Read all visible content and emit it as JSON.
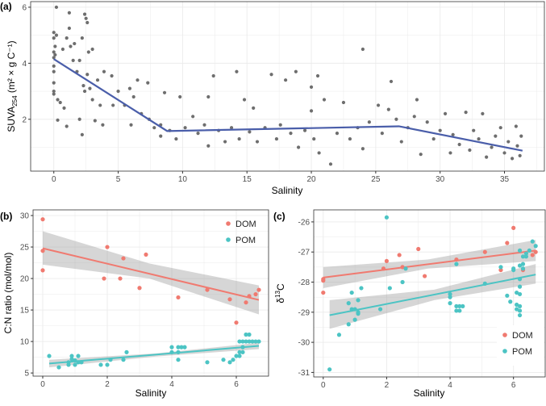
{
  "chart_data": [
    {
      "id": "a",
      "panel_label": "(a)",
      "type": "scatter",
      "xlabel": "Salinity",
      "ylabel": "SUVA",
      "ylabel_sub": "254",
      "ylabel_unit": " (m² × g C⁻¹)",
      "xlim": [
        -1.8,
        38.1
      ],
      "ylim": [
        0.15,
        6.2
      ],
      "xticks": [
        0,
        5,
        10,
        15,
        20,
        25,
        30,
        35
      ],
      "yticks": [
        2,
        4,
        6
      ],
      "grid": true,
      "point_color": "#6e6e6e",
      "line_color": "#4a5eaa",
      "trend": [
        [
          0,
          4.15
        ],
        [
          8.8,
          1.58
        ],
        [
          26.8,
          1.75
        ],
        [
          36.4,
          0.88
        ]
      ],
      "points": [
        [
          0,
          5.1
        ],
        [
          0,
          4.9
        ],
        [
          0,
          4.4
        ],
        [
          0,
          4.2
        ],
        [
          0,
          3.9
        ],
        [
          0,
          3.7
        ],
        [
          0,
          3.3
        ],
        [
          0,
          3.0
        ],
        [
          0,
          2.9
        ],
        [
          0.1,
          4.6
        ],
        [
          0.1,
          4.3
        ],
        [
          0.2,
          6.0
        ],
        [
          0.2,
          5.0
        ],
        [
          0.3,
          2.7
        ],
        [
          0.3,
          1.97
        ],
        [
          0.5,
          2.6
        ],
        [
          0.7,
          4.5
        ],
        [
          0.8,
          2.4
        ],
        [
          1,
          4.9
        ],
        [
          1,
          1.75
        ],
        [
          1.2,
          5.8
        ],
        [
          1.2,
          5.25
        ],
        [
          1.3,
          4.6
        ],
        [
          1.5,
          4.1
        ],
        [
          1.6,
          4.7
        ],
        [
          1.8,
          3.7
        ],
        [
          2,
          4.1
        ],
        [
          2,
          2.0
        ],
        [
          2.2,
          4.9
        ],
        [
          2.2,
          1.45
        ],
        [
          2.3,
          3.2
        ],
        [
          2.4,
          5.75
        ],
        [
          2.4,
          3.0
        ],
        [
          2.5,
          5.6
        ],
        [
          2.6,
          5.45
        ],
        [
          2.6,
          3.6
        ],
        [
          2.7,
          4.4
        ],
        [
          2.8,
          3.1
        ],
        [
          3,
          4.5
        ],
        [
          3,
          2.7
        ],
        [
          3.2,
          1.95
        ],
        [
          3.4,
          3.4
        ],
        [
          3.6,
          2.5
        ],
        [
          3.8,
          1.8
        ],
        [
          3.9,
          3.7
        ],
        [
          4.5,
          3.55
        ],
        [
          4.6,
          2.5
        ],
        [
          5,
          3.0
        ],
        [
          5.5,
          2.5
        ],
        [
          5.9,
          3.1
        ],
        [
          6,
          1.8
        ],
        [
          6.2,
          2.8
        ],
        [
          6.5,
          3.4
        ],
        [
          6.8,
          2.2
        ],
        [
          7.3,
          3.3
        ],
        [
          7.4,
          2.0
        ],
        [
          7.8,
          1.7
        ],
        [
          8.3,
          1.4
        ],
        [
          8.3,
          1.8
        ],
        [
          8.6,
          2.95
        ],
        [
          9,
          1.6
        ],
        [
          9.5,
          1.3
        ],
        [
          9.8,
          2.8
        ],
        [
          10.2,
          1.7
        ],
        [
          10.8,
          2.1
        ],
        [
          11.2,
          1.5
        ],
        [
          11.7,
          1.8
        ],
        [
          12,
          2.8
        ],
        [
          12,
          1.05
        ],
        [
          12.4,
          3.55
        ],
        [
          12.8,
          1.6
        ],
        [
          13.3,
          1.2
        ],
        [
          13.8,
          1.7
        ],
        [
          14.2,
          3.7
        ],
        [
          14.4,
          1.3
        ],
        [
          14.8,
          2.7
        ],
        [
          15.2,
          1.55
        ],
        [
          15.5,
          2.4
        ],
        [
          15.8,
          1.2
        ],
        [
          16.4,
          1.7
        ],
        [
          16.9,
          3.6
        ],
        [
          17.3,
          1.3
        ],
        [
          17.6,
          1.8
        ],
        [
          18,
          3.4
        ],
        [
          18.4,
          1.5
        ],
        [
          18.8,
          3.7
        ],
        [
          19,
          1.0
        ],
        [
          19.5,
          1.6
        ],
        [
          20,
          3.15
        ],
        [
          20,
          2.3
        ],
        [
          20.2,
          1.3
        ],
        [
          20.5,
          3.55
        ],
        [
          20.6,
          0.8
        ],
        [
          21,
          2.7
        ],
        [
          21.5,
          0.4
        ],
        [
          22,
          1.5
        ],
        [
          22.5,
          2.6
        ],
        [
          23,
          1.3
        ],
        [
          23.6,
          1.7
        ],
        [
          24,
          4.5
        ],
        [
          24,
          0.95
        ],
        [
          24.5,
          1.9
        ],
        [
          25.2,
          2.5
        ],
        [
          25.5,
          1.5
        ],
        [
          26,
          2.35
        ],
        [
          26.2,
          3.35
        ],
        [
          26.6,
          2.0
        ],
        [
          27,
          1.2
        ],
        [
          27.5,
          1.7
        ],
        [
          28,
          2.1
        ],
        [
          28.2,
          2.7
        ],
        [
          28.5,
          0.75
        ],
        [
          29,
          1.9
        ],
        [
          29.5,
          1.3
        ],
        [
          30,
          1.6
        ],
        [
          30.4,
          2.2
        ],
        [
          30.8,
          0.8
        ],
        [
          31,
          1.45
        ],
        [
          31.5,
          1.1
        ],
        [
          32,
          2.25
        ],
        [
          32.3,
          0.9
        ],
        [
          32.6,
          1.6
        ],
        [
          33,
          1.3
        ],
        [
          33.3,
          2.2
        ],
        [
          33.6,
          0.65
        ],
        [
          34,
          1.0
        ],
        [
          34.3,
          1.4
        ],
        [
          34.7,
          1.7
        ],
        [
          35,
          0.8
        ],
        [
          35.3,
          1.2
        ],
        [
          35.6,
          0.6
        ],
        [
          35.9,
          1.75
        ],
        [
          36,
          1.05
        ],
        [
          36.2,
          0.7
        ],
        [
          36.3,
          1.4
        ]
      ]
    },
    {
      "id": "b",
      "panel_label": "(b)",
      "type": "scatter",
      "xlabel": "Salinity",
      "ylabel": "C:N ratio (mol/mol)",
      "xlim": [
        -0.3,
        7.0
      ],
      "ylim": [
        4.5,
        30.9
      ],
      "xticks": [
        0,
        2,
        4,
        6
      ],
      "yticks": [
        5,
        10,
        15,
        20,
        25,
        30
      ],
      "grid": true,
      "legend": "top-right",
      "series": [
        {
          "name": "DOM",
          "color": "#f07a70",
          "fit": [
            [
              0,
              24.8
            ],
            [
              6.7,
              16.6
            ]
          ],
          "ci": [
            [
              0,
              22.2,
              27.5
            ],
            [
              3.3,
              20.0,
              22.4
            ],
            [
              6.7,
              14.3,
              18.9
            ]
          ],
          "points": [
            [
              0,
              29.4
            ],
            [
              0,
              24.4
            ],
            [
              0,
              21.3
            ],
            [
              1.9,
              20
            ],
            [
              2,
              25
            ],
            [
              2.4,
              20
            ],
            [
              2.5,
              23.2
            ],
            [
              3,
              18.5
            ],
            [
              3.2,
              23.8
            ],
            [
              4.2,
              17
            ],
            [
              5.1,
              18.2
            ],
            [
              5.8,
              16.7
            ],
            [
              6,
              13
            ],
            [
              6.3,
              16.2
            ],
            [
              6.4,
              17.2
            ],
            [
              6.6,
              17.5
            ],
            [
              6.7,
              18.2
            ]
          ]
        },
        {
          "name": "POM",
          "color": "#4cc4c4",
          "fit": [
            [
              0.2,
              6.5
            ],
            [
              6.7,
              9.3
            ]
          ],
          "ci": [
            [
              0.2,
              5.9,
              7.1
            ],
            [
              3.5,
              7.6,
              8.1
            ],
            [
              6.7,
              8.8,
              9.8
            ]
          ],
          "points": [
            [
              0.2,
              7.7
            ],
            [
              0.5,
              5.9
            ],
            [
              0.8,
              6.3
            ],
            [
              0.8,
              6.7
            ],
            [
              0.9,
              7.7
            ],
            [
              0.9,
              7.2
            ],
            [
              1,
              6.3
            ],
            [
              1,
              7
            ],
            [
              1.1,
              7.7
            ],
            [
              1.1,
              6.7
            ],
            [
              1.2,
              6.7
            ],
            [
              1.8,
              6.3
            ],
            [
              2,
              6.3
            ],
            [
              2.1,
              7.1
            ],
            [
              2.5,
              7.1
            ],
            [
              2.6,
              8.3
            ],
            [
              4,
              9.1
            ],
            [
              4,
              8.3
            ],
            [
              4.2,
              9.1
            ],
            [
              4.2,
              8.3
            ],
            [
              4.2,
              7.1
            ],
            [
              4.3,
              9.1
            ],
            [
              4.4,
              9.1
            ],
            [
              5.1,
              6.7
            ],
            [
              5.6,
              7.1
            ],
            [
              5.8,
              6.7
            ],
            [
              5.9,
              7.1
            ],
            [
              6,
              7.7
            ],
            [
              6.1,
              7.7
            ],
            [
              6.1,
              8.3
            ],
            [
              6.1,
              10
            ],
            [
              6.2,
              8.3
            ],
            [
              6.2,
              9.1
            ],
            [
              6.2,
              10
            ],
            [
              6.3,
              11.1
            ],
            [
              6.3,
              10
            ],
            [
              6.4,
              11.1
            ],
            [
              6.4,
              10
            ],
            [
              6.5,
              10
            ],
            [
              6.6,
              10
            ],
            [
              6.7,
              10
            ]
          ]
        }
      ]
    },
    {
      "id": "c",
      "panel_label": "(c)",
      "type": "scatter",
      "xlabel": "Salinity",
      "ylabel": "δ",
      "ylabel_sup": "13",
      "ylabel_unit": "C",
      "xlim": [
        -0.3,
        7.0
      ],
      "ylim": [
        -31.15,
        -25.6
      ],
      "xticks": [
        0,
        2,
        4,
        6
      ],
      "yticks": [
        -31,
        -30,
        -29,
        -28,
        -27,
        -26
      ],
      "grid": true,
      "legend": "bottom-right",
      "series": [
        {
          "name": "DOM",
          "color": "#f07a70",
          "fit": [
            [
              0,
              -27.85
            ],
            [
              6.7,
              -26.95
            ]
          ],
          "ci": [
            [
              0,
              -28.2,
              -27.5
            ],
            [
              3.3,
              -27.55,
              -27.25
            ],
            [
              6.7,
              -27.3,
              -26.6
            ]
          ],
          "points": [
            [
              0,
              -28.35
            ],
            [
              0,
              -27.9
            ],
            [
              0,
              -27.95
            ],
            [
              1.9,
              -27.55
            ],
            [
              2,
              -27.3
            ],
            [
              2.4,
              -27.1
            ],
            [
              2.5,
              -27.5
            ],
            [
              3,
              -26.9
            ],
            [
              3.2,
              -27.8
            ],
            [
              4.2,
              -27.25
            ],
            [
              5.1,
              -27.0
            ],
            [
              5.6,
              -27.6
            ],
            [
              5.8,
              -26.7
            ],
            [
              6,
              -26.2
            ],
            [
              6.3,
              -27.6
            ],
            [
              6.6,
              -27.1
            ],
            [
              6.7,
              -27.0
            ]
          ]
        },
        {
          "name": "POM",
          "color": "#4cc4c4",
          "fit": [
            [
              0.2,
              -29.1
            ],
            [
              6.7,
              -27.75
            ]
          ],
          "ci": [
            [
              0.2,
              -29.55,
              -28.6
            ],
            [
              3.5,
              -28.6,
              -28.25
            ],
            [
              6.7,
              -28.05,
              -27.4
            ]
          ],
          "points": [
            [
              0.2,
              -30.9
            ],
            [
              0.5,
              -29.75
            ],
            [
              0.8,
              -28.7
            ],
            [
              0.8,
              -29.4
            ],
            [
              0.9,
              -28.35
            ],
            [
              0.9,
              -28.9
            ],
            [
              1,
              -28.9
            ],
            [
              1,
              -29.25
            ],
            [
              1.1,
              -28.6
            ],
            [
              1.1,
              -29
            ],
            [
              1.1,
              -29.05
            ],
            [
              1.2,
              -28.2
            ],
            [
              1.8,
              -28.9
            ],
            [
              2,
              -25.85
            ],
            [
              2.1,
              -28.2
            ],
            [
              2.5,
              -28
            ],
            [
              2.6,
              -27.55
            ],
            [
              4,
              -28.4
            ],
            [
              4,
              -28.5
            ],
            [
              4,
              -28.7
            ],
            [
              4.2,
              -27.4
            ],
            [
              4.2,
              -28.8
            ],
            [
              4.2,
              -28.95
            ],
            [
              4.3,
              -28.8
            ],
            [
              4.3,
              -28.95
            ],
            [
              4.4,
              -28.8
            ],
            [
              5.1,
              -28.05
            ],
            [
              5.6,
              -27.5
            ],
            [
              5.8,
              -28.45
            ],
            [
              5.9,
              -28.65
            ],
            [
              6,
              -27.55
            ],
            [
              6,
              -27.6
            ],
            [
              6.1,
              -28.35
            ],
            [
              6.1,
              -28.75
            ],
            [
              6.1,
              -28.9
            ],
            [
              6.2,
              -26.95
            ],
            [
              6.2,
              -27.45
            ],
            [
              6.2,
              -27.9
            ],
            [
              6.2,
              -28.15
            ],
            [
              6.2,
              -28.4
            ],
            [
              6.2,
              -28.8
            ],
            [
              6.2,
              -28.95
            ],
            [
              6.2,
              -29.1
            ],
            [
              6.3,
              -27.15
            ],
            [
              6.3,
              -27.4
            ],
            [
              6.3,
              -27.55
            ],
            [
              6.4,
              -27.05
            ],
            [
              6.4,
              -27.15
            ],
            [
              6.5,
              -26.95
            ],
            [
              6.6,
              -26.65
            ],
            [
              6.7,
              -26.8
            ]
          ]
        }
      ]
    }
  ]
}
